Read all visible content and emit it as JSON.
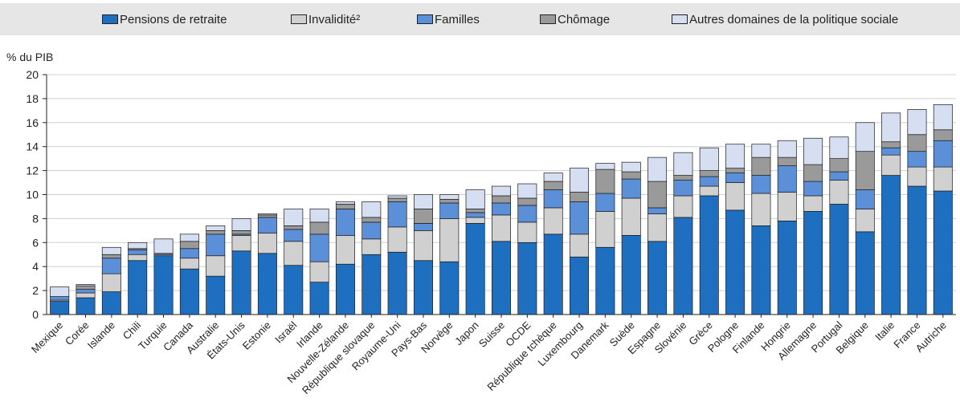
{
  "chart_data": {
    "type": "bar",
    "stacked": true,
    "ylabel": "% du PIB",
    "ylim": [
      0,
      20
    ],
    "yticks": [
      0,
      2,
      4,
      6,
      8,
      10,
      12,
      14,
      16,
      18,
      20
    ],
    "legend_position": "top",
    "categories": [
      "Mexique",
      "Corée",
      "Islande",
      "Chili",
      "Turquie",
      "Canada",
      "Australie",
      "États-Unis",
      "Estonie",
      "Israël",
      "Irlande",
      "Nouvelle-Zélande",
      "République slovaque",
      "Royaume-Uni",
      "Pays-Bas",
      "Norvège",
      "Japon",
      "Suisse",
      "OCDE",
      "République tchèque",
      "Luxembourg",
      "Danemark",
      "Suède",
      "Espagne",
      "Slovénie",
      "Grèce",
      "Pologne",
      "Finlande",
      "Hongrie",
      "Allemagne",
      "Portugal",
      "Belgique",
      "Italie",
      "France",
      "Autriche"
    ],
    "series": [
      {
        "name": "Pensions de retraite",
        "color": "#1f6fc0",
        "values": [
          1.1,
          1.4,
          1.9,
          4.5,
          4.9,
          3.8,
          3.2,
          5.3,
          5.1,
          4.1,
          2.7,
          4.2,
          5.0,
          5.2,
          4.5,
          4.4,
          7.6,
          6.1,
          6.0,
          6.7,
          4.8,
          5.6,
          6.6,
          6.1,
          8.1,
          9.9,
          8.7,
          7.4,
          7.8,
          8.6,
          9.2,
          6.9,
          11.6,
          10.7,
          10.3
        ]
      },
      {
        "name": "Invalidité²",
        "color": "#d0d0d0",
        "values": [
          0.1,
          0.4,
          1.5,
          0.5,
          0.1,
          0.9,
          1.7,
          1.3,
          1.7,
          2.0,
          1.7,
          2.4,
          1.3,
          2.1,
          2.5,
          3.6,
          0.5,
          2.2,
          1.7,
          2.2,
          1.9,
          3.0,
          3.1,
          2.3,
          1.8,
          0.8,
          2.3,
          2.7,
          2.4,
          1.3,
          2.0,
          1.9,
          1.7,
          1.6,
          2.0
        ]
      },
      {
        "name": "Familles",
        "color": "#5b8fd8",
        "values": [
          0.3,
          0.3,
          1.3,
          0.4,
          0.1,
          0.8,
          1.8,
          0.1,
          1.3,
          1.0,
          2.3,
          2.2,
          1.4,
          2.1,
          0.6,
          1.3,
          0.4,
          1.0,
          1.4,
          1.5,
          2.7,
          1.5,
          1.6,
          0.5,
          1.3,
          0.8,
          0.8,
          1.5,
          2.2,
          1.2,
          0.7,
          1.6,
          0.6,
          1.3,
          2.2
        ]
      },
      {
        "name": "Chômage",
        "color": "#9a9a9a",
        "values": [
          0.0,
          0.3,
          0.3,
          0.1,
          0.0,
          0.6,
          0.3,
          0.3,
          0.2,
          0.3,
          1.0,
          0.4,
          0.4,
          0.3,
          1.2,
          0.3,
          0.3,
          0.6,
          0.6,
          0.7,
          0.8,
          2.0,
          0.6,
          2.2,
          0.4,
          0.5,
          0.4,
          1.5,
          0.7,
          1.4,
          1.1,
          3.2,
          0.5,
          1.4,
          0.9
        ]
      },
      {
        "name": "Autres domaines de la politique sociale",
        "color": "#d6def2",
        "values": [
          0.8,
          0.1,
          0.6,
          0.5,
          1.2,
          0.6,
          0.4,
          1.0,
          0.1,
          1.4,
          1.1,
          0.2,
          1.3,
          0.2,
          1.2,
          0.4,
          1.6,
          0.8,
          1.2,
          0.7,
          2.0,
          0.5,
          0.8,
          2.0,
          1.9,
          1.9,
          2.0,
          1.1,
          1.4,
          2.2,
          1.8,
          2.4,
          2.4,
          2.1,
          2.1
        ]
      }
    ]
  }
}
